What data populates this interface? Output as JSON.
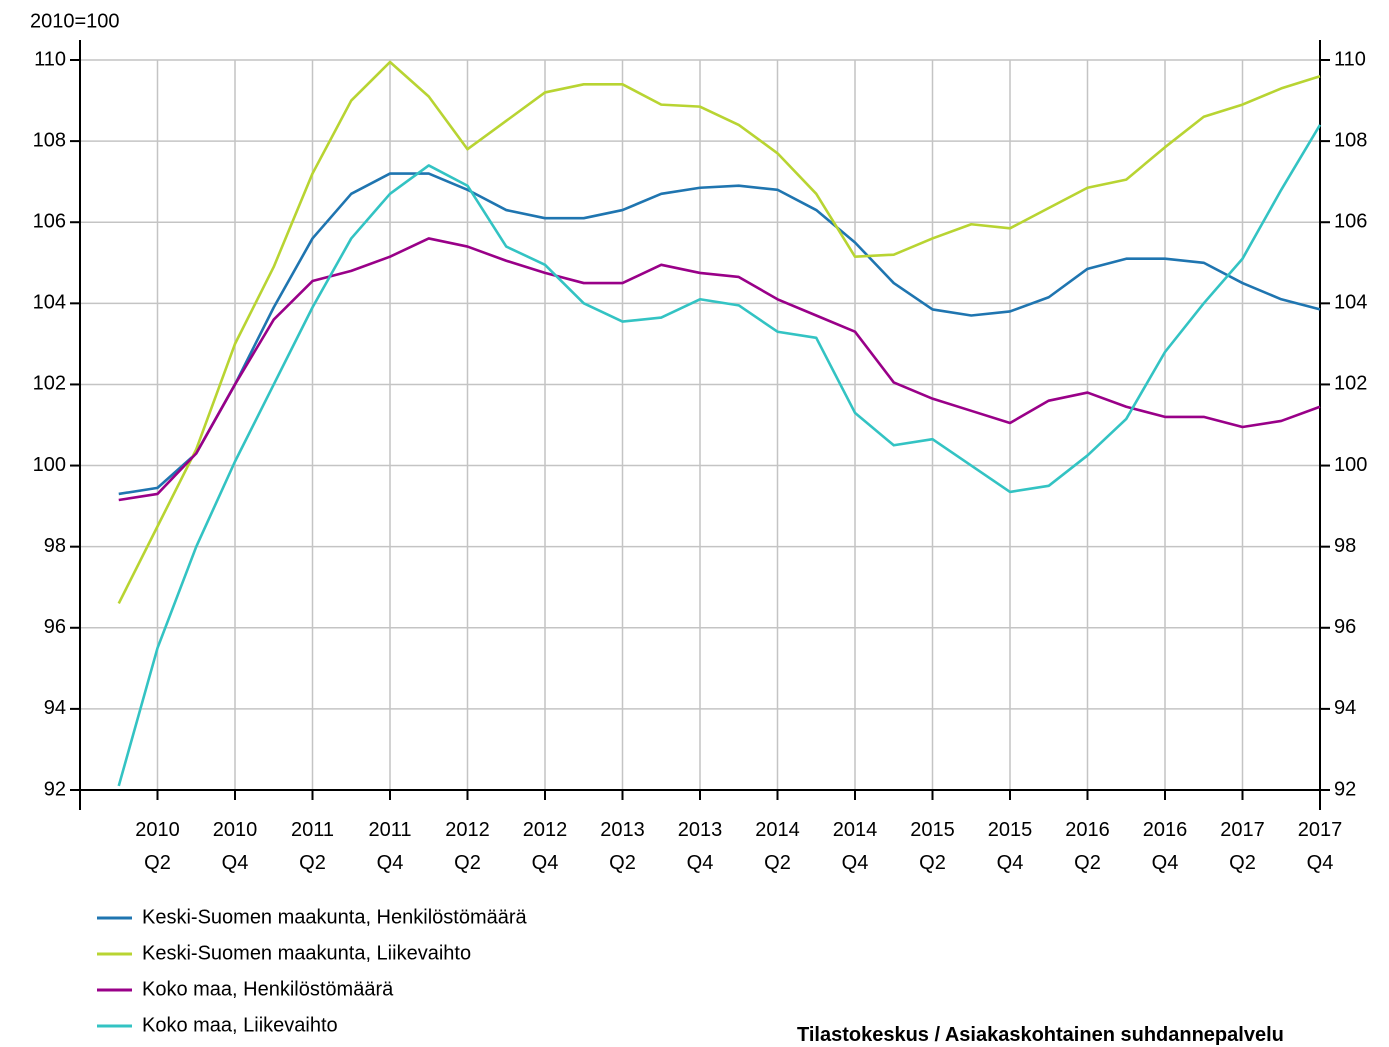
{
  "chart_data": {
    "type": "line",
    "y_unit_label": "2010=100",
    "source": "Tilastokeskus / Asiakaskohtainen suhdannepalvelu",
    "categories": [
      null,
      "2010 Q2",
      null,
      "2010 Q4",
      null,
      "2011 Q2",
      null,
      "2011 Q4",
      null,
      "2012 Q2",
      null,
      "2012 Q4",
      null,
      "2013 Q2",
      null,
      "2013 Q4",
      null,
      "2014 Q2",
      null,
      "2014 Q4",
      null,
      "2015 Q2",
      null,
      "2015 Q4",
      null,
      "2016 Q2",
      null,
      "2016 Q4",
      null,
      "2017 Q2",
      null,
      "2017 Q4"
    ],
    "ylim": [
      92,
      110
    ],
    "yticks": [
      92,
      94,
      96,
      98,
      100,
      102,
      104,
      106,
      108,
      110
    ],
    "y2lim": [
      92,
      110
    ],
    "y2ticks": [
      92,
      94,
      96,
      98,
      100,
      102,
      104,
      106,
      108,
      110
    ],
    "grid": true,
    "series": [
      {
        "name": "Keski-Suomen maakunta, Henkilöstömäärä",
        "color": "#1f75b0",
        "values": [
          99.3,
          99.45,
          100.3,
          102.0,
          103.9,
          105.6,
          106.7,
          107.2,
          107.2,
          106.8,
          106.3,
          106.1,
          106.1,
          106.3,
          106.7,
          106.85,
          106.9,
          106.8,
          106.3,
          105.5,
          104.5,
          103.85,
          103.7,
          103.8,
          104.15,
          104.85,
          105.1,
          105.1,
          105.0,
          104.5,
          104.1,
          103.85
        ]
      },
      {
        "name": "Keski-Suomen maakunta, Liikevaihto",
        "color": "#b8d432",
        "values": [
          96.6,
          98.5,
          100.4,
          103.0,
          104.9,
          107.2,
          109.0,
          109.95,
          109.1,
          107.8,
          108.5,
          109.2,
          109.4,
          109.4,
          108.9,
          108.85,
          108.4,
          107.7,
          106.7,
          105.15,
          105.2,
          105.6,
          105.95,
          105.85,
          106.35,
          106.85,
          107.05,
          107.85,
          108.6,
          108.9,
          109.3,
          109.6
        ]
      },
      {
        "name": "Koko maa, Henkilöstömäärä",
        "color": "#990088",
        "values": [
          99.15,
          99.3,
          100.3,
          102.0,
          103.6,
          104.55,
          104.8,
          105.15,
          105.6,
          105.4,
          105.05,
          104.75,
          104.5,
          104.5,
          104.95,
          104.75,
          104.65,
          104.1,
          103.7,
          103.3,
          102.05,
          101.65,
          101.35,
          101.05,
          101.6,
          101.8,
          101.45,
          101.2,
          101.2,
          100.95,
          101.1,
          101.45
        ]
      },
      {
        "name": "Koko maa, Liikevaihto",
        "color": "#33c3c3",
        "values": [
          92.1,
          95.5,
          98.0,
          100.1,
          102.0,
          103.9,
          105.6,
          106.7,
          107.4,
          106.9,
          105.4,
          104.95,
          104.0,
          103.55,
          103.65,
          104.1,
          103.95,
          103.3,
          103.15,
          101.3,
          100.5,
          100.65,
          100.0,
          99.35,
          99.5,
          100.25,
          101.15,
          102.8,
          104.0,
          105.1,
          106.8,
          108.4
        ]
      }
    ]
  }
}
